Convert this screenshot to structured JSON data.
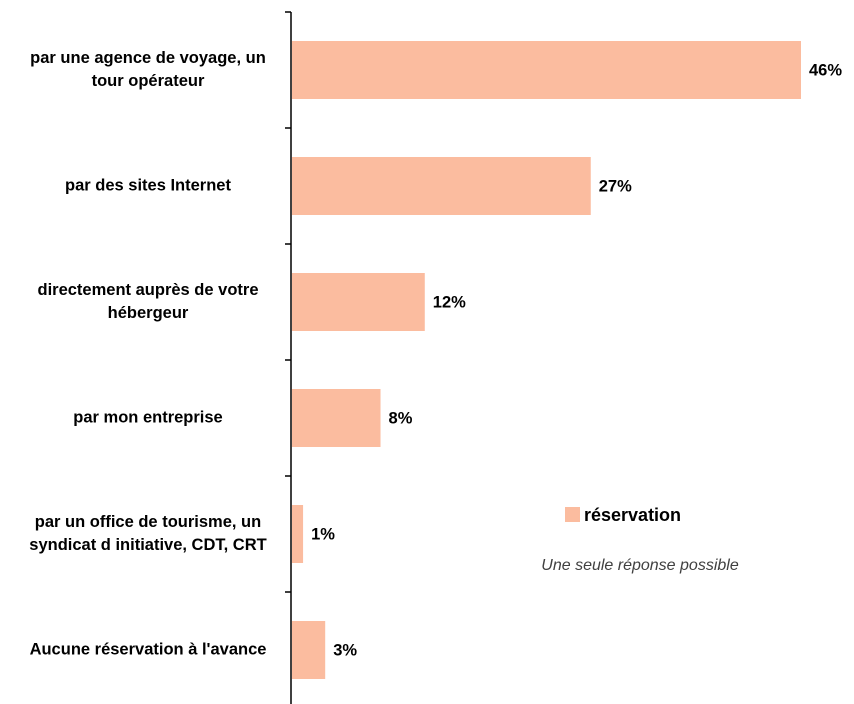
{
  "chart_data": {
    "type": "bar",
    "orientation": "horizontal",
    "categories": [
      "par une agence de voyage, un tour opérateur",
      "par des sites Internet",
      "directement auprès de votre hébergeur",
      "par mon entreprise",
      "par un office de tourisme, un syndicat d initiative, CDT, CRT",
      "Aucune réservation à l'avance"
    ],
    "series": [
      {
        "name": "réservation",
        "color": "#fbbc9f",
        "values": [
          46,
          27,
          12,
          8,
          1,
          3
        ],
        "value_labels": [
          "46%",
          "27%",
          "12%",
          "8%",
          "1%",
          "3%"
        ]
      }
    ],
    "annotations": [
      "Une seule réponse possible"
    ],
    "legend": "right"
  }
}
